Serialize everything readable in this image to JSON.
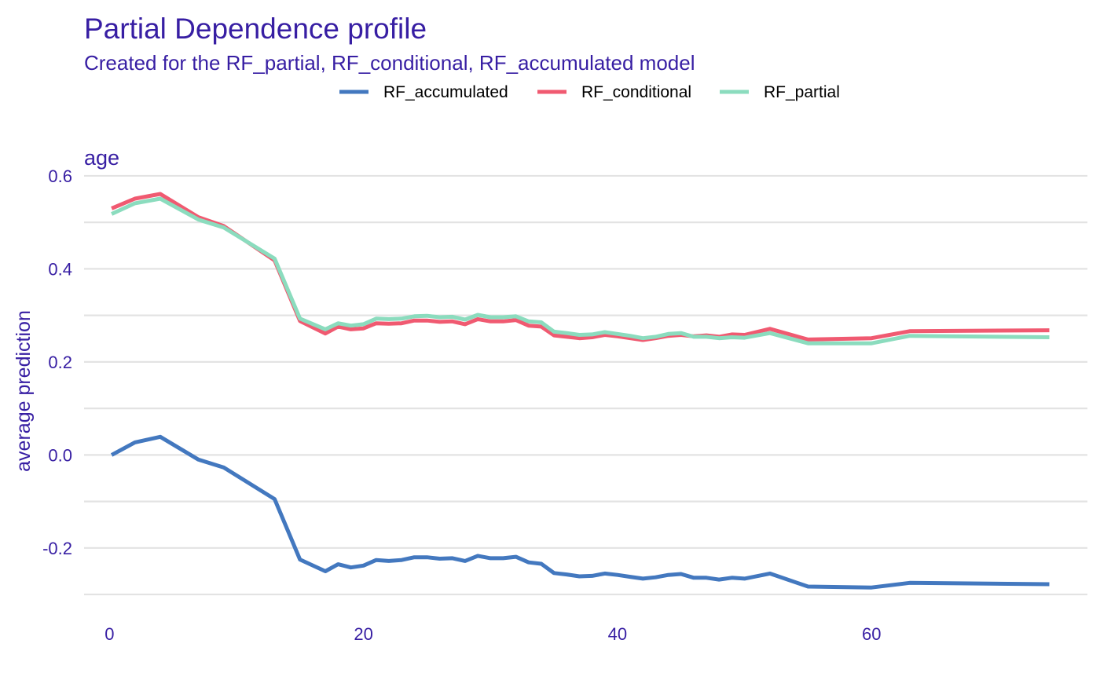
{
  "chart_data": {
    "type": "line",
    "title": "Partial Dependence profile",
    "subtitle": "Created for the RF_partial, RF_conditional, RF_accumulated model",
    "panel_label": "age",
    "xlabel": "",
    "ylabel": "average prediction",
    "xlim": [
      -2,
      77
    ],
    "ylim": [
      -0.31,
      0.61
    ],
    "x_ticks": [
      0,
      20,
      40,
      60
    ],
    "x_tick_labels": [
      "0",
      "20",
      "40",
      "60"
    ],
    "y_ticks": [
      -0.2,
      0.0,
      0.2,
      0.4,
      0.6
    ],
    "y_tick_labels": [
      "-0.2",
      "0.0",
      "0.2",
      "0.4",
      "0.6"
    ],
    "grid": true,
    "legend_position": "top",
    "legend": [
      "RF_accumulated",
      "RF_conditional",
      "RF_partial"
    ],
    "series": [
      {
        "name": "RF_accumulated",
        "color": "#4378bf",
        "x": [
          0.17,
          2,
          4,
          7,
          9,
          13,
          15,
          17,
          18,
          19,
          20,
          21,
          22,
          23,
          24,
          25,
          26,
          27,
          28,
          29,
          30,
          31,
          32,
          33,
          34,
          35,
          36,
          37,
          38,
          39,
          40,
          41,
          42,
          43,
          44,
          45,
          46,
          47,
          48,
          49,
          50,
          52,
          55,
          60,
          63,
          74
        ],
        "y": [
          0.0,
          0.027,
          0.039,
          -0.01,
          -0.027,
          -0.095,
          -0.225,
          -0.25,
          -0.235,
          -0.242,
          -0.238,
          -0.226,
          -0.228,
          -0.226,
          -0.22,
          -0.22,
          -0.223,
          -0.222,
          -0.228,
          -0.217,
          -0.222,
          -0.222,
          -0.219,
          -0.231,
          -0.234,
          -0.254,
          -0.257,
          -0.261,
          -0.26,
          -0.255,
          -0.258,
          -0.262,
          -0.266,
          -0.263,
          -0.258,
          -0.256,
          -0.264,
          -0.264,
          -0.268,
          -0.264,
          -0.266,
          -0.255,
          -0.283,
          -0.285,
          -0.275,
          -0.278
        ]
      },
      {
        "name": "RF_conditional",
        "color": "#f05a71",
        "x": [
          0.17,
          2,
          4,
          7,
          9,
          13,
          15,
          17,
          18,
          19,
          20,
          21,
          22,
          23,
          24,
          25,
          26,
          27,
          28,
          29,
          30,
          31,
          32,
          33,
          34,
          35,
          36,
          37,
          38,
          39,
          40,
          41,
          42,
          43,
          44,
          45,
          46,
          47,
          48,
          49,
          50,
          52,
          55,
          60,
          63,
          74
        ],
        "y": [
          0.53,
          0.551,
          0.561,
          0.511,
          0.492,
          0.418,
          0.288,
          0.261,
          0.276,
          0.27,
          0.272,
          0.283,
          0.282,
          0.283,
          0.289,
          0.289,
          0.286,
          0.287,
          0.281,
          0.292,
          0.287,
          0.287,
          0.29,
          0.278,
          0.276,
          0.257,
          0.254,
          0.251,
          0.253,
          0.258,
          0.255,
          0.251,
          0.247,
          0.251,
          0.256,
          0.258,
          0.255,
          0.257,
          0.254,
          0.259,
          0.258,
          0.271,
          0.248,
          0.251,
          0.266,
          0.268
        ]
      },
      {
        "name": "RF_partial",
        "color": "#8bdcbe",
        "x": [
          0.17,
          2,
          4,
          7,
          9,
          13,
          15,
          17,
          18,
          19,
          20,
          21,
          22,
          23,
          24,
          25,
          26,
          27,
          28,
          29,
          30,
          31,
          32,
          33,
          34,
          35,
          36,
          37,
          38,
          39,
          40,
          41,
          42,
          43,
          44,
          45,
          46,
          47,
          48,
          49,
          50,
          52,
          55,
          60,
          63,
          74
        ],
        "y": [
          0.518,
          0.541,
          0.551,
          0.506,
          0.489,
          0.422,
          0.293,
          0.27,
          0.283,
          0.278,
          0.281,
          0.293,
          0.292,
          0.293,
          0.298,
          0.299,
          0.296,
          0.297,
          0.291,
          0.301,
          0.296,
          0.296,
          0.298,
          0.287,
          0.285,
          0.265,
          0.262,
          0.258,
          0.259,
          0.264,
          0.26,
          0.256,
          0.251,
          0.254,
          0.26,
          0.262,
          0.254,
          0.254,
          0.251,
          0.253,
          0.252,
          0.262,
          0.24,
          0.24,
          0.256,
          0.253
        ]
      }
    ]
  }
}
